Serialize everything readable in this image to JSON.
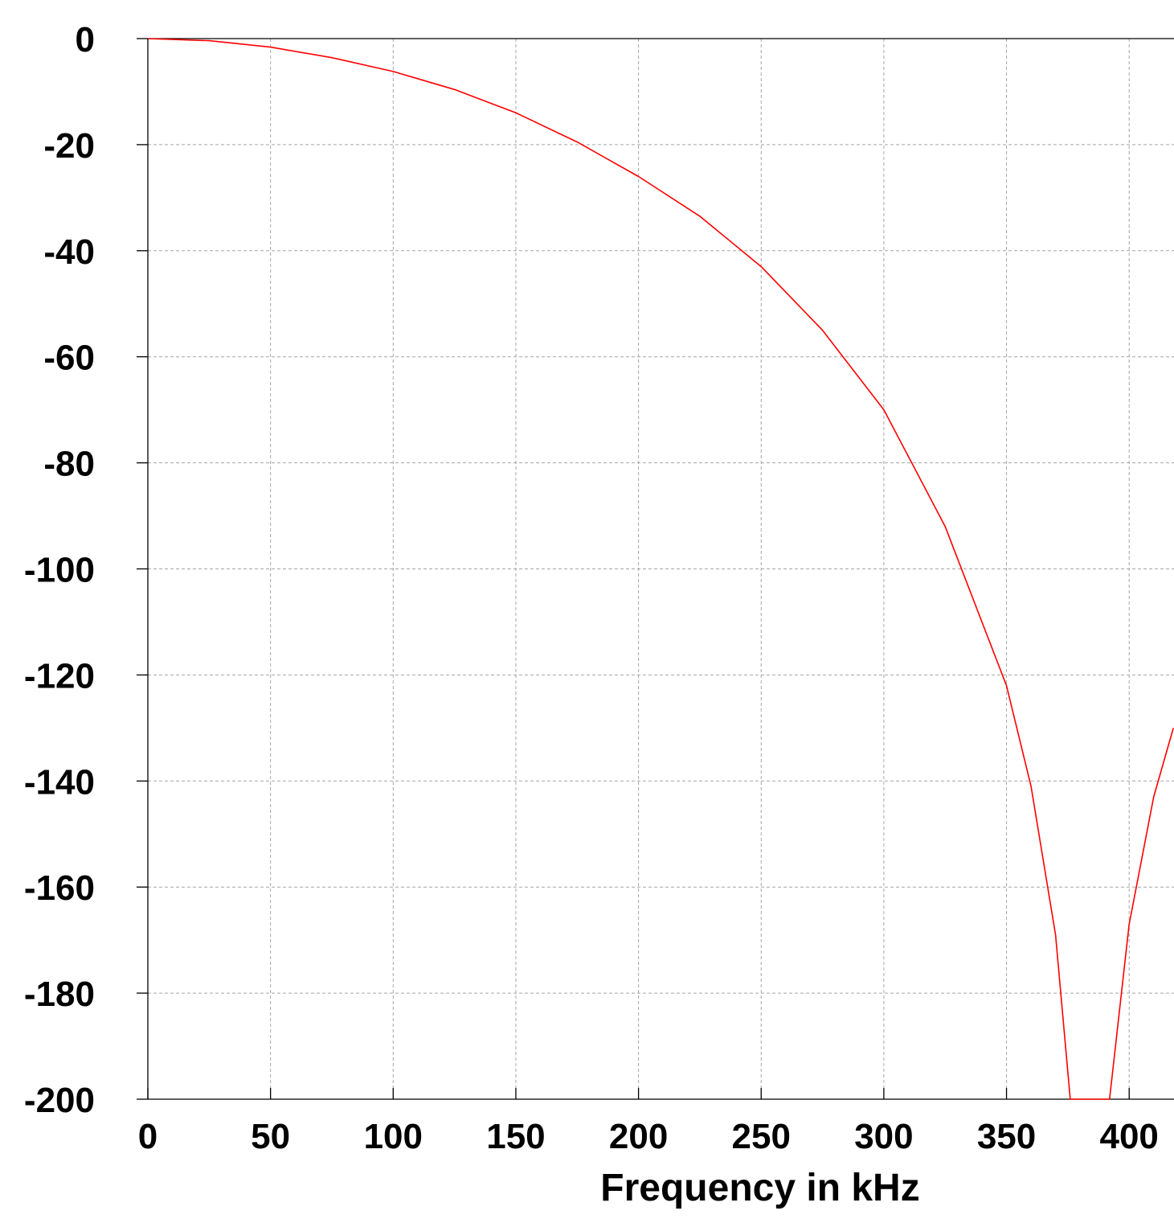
{
  "chart_data": {
    "type": "line",
    "title": "",
    "xlabel": "Frequency in kHz",
    "ylabel": "",
    "xlim": [
      0,
      418
    ],
    "ylim": [
      -200,
      0
    ],
    "x_ticks": [
      0,
      50,
      100,
      150,
      200,
      250,
      300,
      350,
      400
    ],
    "y_ticks": [
      0,
      -20,
      -40,
      -60,
      -80,
      -100,
      -120,
      -140,
      -160,
      -180,
      -200
    ],
    "x_tick_labels": [
      "0",
      "50",
      "100",
      "150",
      "200",
      "250",
      "300",
      "350",
      "400"
    ],
    "y_tick_labels": [
      "0",
      "-20",
      "-40",
      "-60",
      "-80",
      "-100",
      "-120",
      "-140",
      "-160",
      "-180",
      "-200"
    ],
    "grid": true,
    "series": [
      {
        "color": "#ff0000",
        "x": [
          0,
          25,
          50,
          75,
          100,
          125,
          150,
          175,
          200,
          225,
          250,
          275,
          300,
          325,
          350,
          360,
          370,
          376,
          392,
          400,
          410,
          418
        ],
        "y": [
          0,
          -0.4,
          -1.6,
          -3.6,
          -6.2,
          -9.6,
          -14,
          -19.5,
          -26,
          -33.5,
          -43,
          -55,
          -70,
          -92,
          -122,
          -141,
          -169,
          -200,
          -200,
          -167,
          -143,
          -130
        ]
      }
    ]
  }
}
